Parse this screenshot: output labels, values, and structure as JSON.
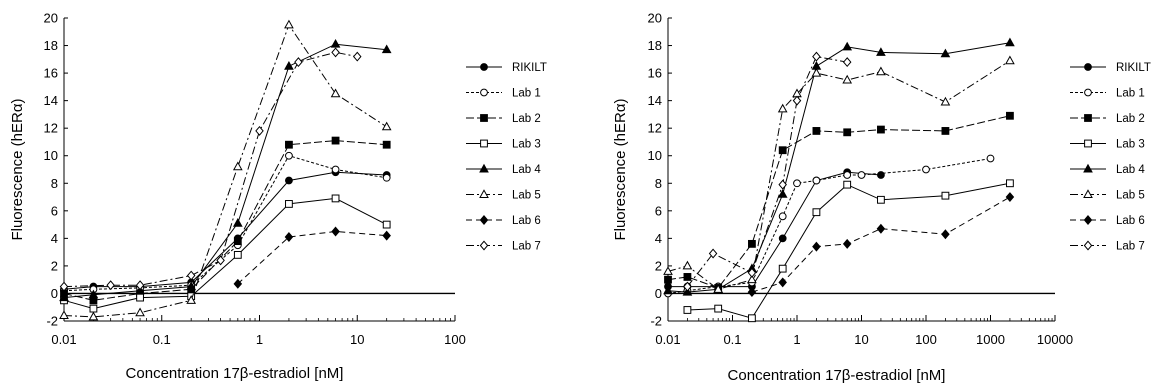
{
  "chart_data": [
    {
      "type": "line",
      "xscale": "log",
      "xlim": [
        0.01,
        100
      ],
      "ylim": [
        -2,
        20
      ],
      "xticks": [
        0.01,
        0.1,
        1,
        10,
        100
      ],
      "xtick_labels": [
        "0.01",
        "0.1",
        "1",
        "10",
        "100"
      ],
      "yticks": [
        -2,
        0,
        2,
        4,
        6,
        8,
        10,
        12,
        14,
        16,
        18,
        20
      ],
      "ytick_labels": [
        "-2",
        "0",
        "2",
        "4",
        "6",
        "8",
        "10",
        "12",
        "14",
        "16",
        "18",
        "20"
      ],
      "xlabel": "Concentration 17β-estradiol [nM]",
      "ylabel": "Fluorescence (hERα)",
      "zero_line": true,
      "grid": false,
      "legend_position": "right",
      "series": [
        {
          "name": "RIKILT",
          "marker": "filled-circle",
          "dash": "solid",
          "x": [
            0.01,
            0.02,
            0.06,
            0.2,
            0.6,
            2,
            6,
            20
          ],
          "y": [
            0.3,
            0.5,
            0.5,
            0.8,
            4.0,
            8.2,
            8.8,
            8.6
          ]
        },
        {
          "name": "Lab 1",
          "marker": "open-circle",
          "dash": "short-dash",
          "x": [
            0.01,
            0.02,
            0.06,
            0.2,
            0.6,
            2,
            6,
            20
          ],
          "y": [
            0.2,
            0.3,
            0.4,
            0.6,
            3.5,
            10.0,
            9.0,
            8.4
          ]
        },
        {
          "name": "Lab 2",
          "marker": "filled-square",
          "dash": "long-dash",
          "x": [
            0.01,
            0.02,
            0.06,
            0.2,
            0.6,
            2,
            6,
            20
          ],
          "y": [
            0.0,
            -0.5,
            0.0,
            0.3,
            3.8,
            10.8,
            11.1,
            10.8
          ]
        },
        {
          "name": "Lab 3",
          "marker": "open-square",
          "dash": "solid",
          "x": [
            0.01,
            0.02,
            0.06,
            0.2,
            0.6,
            2,
            6,
            20
          ],
          "y": [
            -0.5,
            -1.1,
            -0.3,
            -0.2,
            2.8,
            6.5,
            6.9,
            5.0
          ]
        },
        {
          "name": "Lab 4",
          "marker": "filled-triangle",
          "dash": "solid",
          "x": [
            0.01,
            0.02,
            0.06,
            0.2,
            0.6,
            2,
            6,
            20
          ],
          "y": [
            -0.3,
            -0.1,
            0.2,
            0.5,
            5.1,
            16.5,
            18.1,
            17.7
          ]
        },
        {
          "name": "Lab 5",
          "marker": "open-triangle",
          "dash": "dash-dot",
          "x": [
            0.01,
            0.02,
            0.06,
            0.2,
            0.6,
            2,
            6,
            20
          ],
          "y": [
            -1.6,
            -1.7,
            -1.4,
            -0.5,
            9.2,
            19.5,
            14.5,
            12.1
          ]
        },
        {
          "name": "Lab 6",
          "marker": "filled-diamond",
          "dash": "dash",
          "x": [
            0.6,
            2,
            6,
            20
          ],
          "y": [
            0.7,
            4.1,
            4.5,
            4.2
          ]
        },
        {
          "name": "Lab 7",
          "marker": "open-diamond",
          "dash": "dash-dot",
          "x": [
            0.01,
            0.03,
            0.06,
            0.2,
            0.4,
            1,
            2.5,
            6,
            10
          ],
          "y": [
            0.5,
            0.6,
            0.6,
            1.3,
            2.4,
            11.8,
            16.8,
            17.5,
            17.2
          ]
        }
      ]
    },
    {
      "type": "line",
      "xscale": "log",
      "xlim": [
        0.01,
        10000
      ],
      "ylim": [
        -2,
        20
      ],
      "xticks": [
        0.01,
        0.1,
        1,
        10,
        100,
        1000,
        10000
      ],
      "xtick_labels": [
        "0.01",
        "0.1",
        "1",
        "10",
        "100",
        "1000",
        "10000"
      ],
      "yticks": [
        -2,
        0,
        2,
        4,
        6,
        8,
        10,
        12,
        14,
        16,
        18,
        20
      ],
      "ytick_labels": [
        "-2",
        "0",
        "2",
        "4",
        "6",
        "8",
        "10",
        "12",
        "14",
        "16",
        "18",
        "20"
      ],
      "xlabel": "Concentration 17β-estradiol [nM]",
      "ylabel": "Fluorescence (hERα)",
      "zero_line": true,
      "grid": false,
      "legend_position": "right",
      "series": [
        {
          "name": "RIKILT",
          "marker": "filled-circle",
          "dash": "solid",
          "x": [
            0.01,
            0.02,
            0.06,
            0.2,
            0.6,
            2,
            6,
            20
          ],
          "y": [
            0.5,
            0.5,
            0.5,
            0.5,
            4.0,
            8.2,
            8.8,
            8.6
          ]
        },
        {
          "name": "Lab 1",
          "marker": "open-circle",
          "dash": "short-dash",
          "x": [
            0.01,
            0.02,
            0.06,
            0.2,
            0.6,
            1,
            2,
            6,
            10,
            100,
            1000
          ],
          "y": [
            0.0,
            0.2,
            0.5,
            0.8,
            5.6,
            8.0,
            8.2,
            8.6,
            8.6,
            9.0,
            9.8
          ]
        },
        {
          "name": "Lab 2",
          "marker": "filled-square",
          "dash": "long-dash",
          "x": [
            0.01,
            0.02,
            0.06,
            0.2,
            0.6,
            2,
            6,
            20,
            200,
            2000
          ],
          "y": [
            1.0,
            1.2,
            0.4,
            3.6,
            10.4,
            11.8,
            11.7,
            11.9,
            11.8,
            12.9
          ]
        },
        {
          "name": "Lab 3",
          "marker": "open-square",
          "dash": "solid",
          "x": [
            0.02,
            0.06,
            0.2,
            0.6,
            2,
            6,
            20,
            200,
            2000
          ],
          "y": [
            -1.2,
            -1.1,
            -1.8,
            1.8,
            5.9,
            7.9,
            6.8,
            7.1,
            8.0
          ]
        },
        {
          "name": "Lab 4",
          "marker": "filled-triangle",
          "dash": "solid",
          "x": [
            0.01,
            0.02,
            0.06,
            0.2,
            0.6,
            2,
            6,
            20,
            200,
            2000
          ],
          "y": [
            0.2,
            0.1,
            0.3,
            1.8,
            7.2,
            16.5,
            17.9,
            17.5,
            17.4,
            18.2
          ]
        },
        {
          "name": "Lab 5",
          "marker": "open-triangle",
          "dash": "dash-dot",
          "x": [
            0.01,
            0.02,
            0.06,
            0.2,
            0.6,
            1,
            2,
            6,
            20,
            200,
            2000
          ],
          "y": [
            1.6,
            2.0,
            0.3,
            1.0,
            13.4,
            14.5,
            16.0,
            15.5,
            16.1,
            13.9,
            16.9
          ]
        },
        {
          "name": "Lab 6",
          "marker": "filled-diamond",
          "dash": "dash",
          "x": [
            0.2,
            0.6,
            2,
            6,
            20,
            200,
            2000
          ],
          "y": [
            0.1,
            0.8,
            3.4,
            3.6,
            4.7,
            4.3,
            7.0
          ]
        },
        {
          "name": "Lab 7",
          "marker": "open-diamond",
          "dash": "dash-dot",
          "x": [
            0.02,
            0.05,
            0.2,
            0.6,
            1,
            2,
            6
          ],
          "y": [
            0.5,
            2.9,
            1.5,
            7.9,
            14.0,
            17.2,
            16.8
          ]
        }
      ]
    }
  ]
}
